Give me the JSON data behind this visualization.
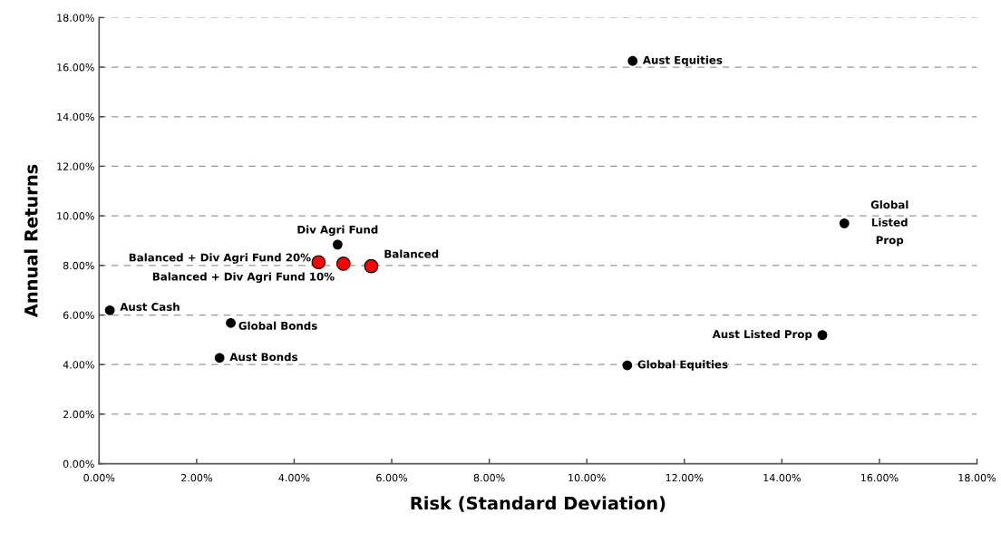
{
  "chart_data": {
    "type": "scatter",
    "xlabel": "Risk (Standard Deviation)",
    "ylabel": "Annual Returns",
    "series": [
      {
        "color": "#000000",
        "x": [
          0.22,
          2.7,
          2.47,
          4.89,
          10.94,
          15.28,
          14.83,
          10.83
        ],
        "values": [
          6.19,
          5.68,
          4.27,
          8.84,
          16.25,
          9.7,
          5.19,
          3.97
        ]
      },
      {
        "color": "#ff0000",
        "x": [
          4.5,
          5.01,
          5.58
        ],
        "values": [
          8.13,
          8.07,
          7.97
        ]
      }
    ],
    "annotations": [
      {
        "text": "Aust Cash",
        "x": 0.22,
        "y": 6.19
      },
      {
        "text": "Global Bonds",
        "x": 2.7,
        "y": 5.68
      },
      {
        "text": "Aust Bonds",
        "x": 2.47,
        "y": 4.27
      },
      {
        "text": "Div Agri Fund",
        "x": 4.89,
        "y": 8.84
      },
      {
        "text": "Aust Equities",
        "x": 10.94,
        "y": 16.25
      },
      {
        "text": "Global\nListed\nProp",
        "x": 15.28,
        "y": 9.7
      },
      {
        "text": "Aust Listed Prop",
        "x": 14.83,
        "y": 5.19
      },
      {
        "text": "Global Equities",
        "x": 10.83,
        "y": 3.97
      },
      {
        "text": "Balanced + Div Agri Fund 20%",
        "x": 4.5,
        "y": 8.13
      },
      {
        "text": "Balanced + Div Agri Fund 10%",
        "x": 5.01,
        "y": 8.07
      },
      {
        "text": "Balanced",
        "x": 5.58,
        "y": 7.97
      }
    ],
    "xlim": [
      0,
      18
    ],
    "ylim": [
      0,
      18
    ],
    "xticks": [
      {
        "value": 0,
        "label": "0.00%"
      },
      {
        "value": 2,
        "label": "2.00%"
      },
      {
        "value": 4,
        "label": "4.00%"
      },
      {
        "value": 6,
        "label": "6.00%"
      },
      {
        "value": 8,
        "label": "8.00%"
      },
      {
        "value": 10,
        "label": "10.00%"
      },
      {
        "value": 12,
        "label": "12.00%"
      },
      {
        "value": 14,
        "label": "14.00%"
      },
      {
        "value": 16,
        "label": "16.00%"
      },
      {
        "value": 18,
        "label": "18.00%"
      }
    ],
    "yticks": [
      {
        "value": 0,
        "label": "0.00%"
      },
      {
        "value": 2,
        "label": "2.00%"
      },
      {
        "value": 4,
        "label": "4.00%"
      },
      {
        "value": 6,
        "label": "6.00%"
      },
      {
        "value": 8,
        "label": "8.00%"
      },
      {
        "value": 10,
        "label": "10.00%"
      },
      {
        "value": 12,
        "label": "12.00%"
      },
      {
        "value": 14,
        "label": "14.00%"
      },
      {
        "value": 16,
        "label": "16.00%"
      },
      {
        "value": 18,
        "label": "18.00%"
      }
    ],
    "grid": "y",
    "marker": "circle",
    "legend": false
  }
}
